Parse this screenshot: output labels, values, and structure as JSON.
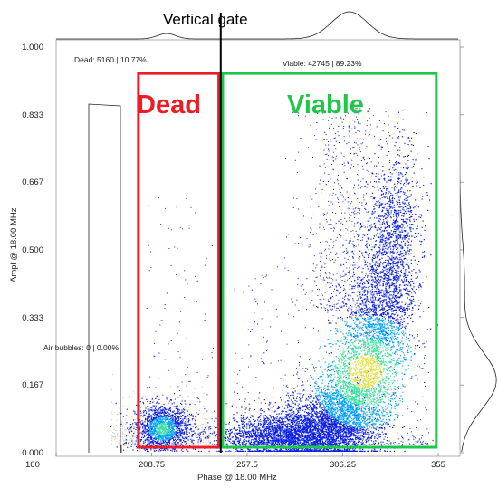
{
  "chart_data": {
    "type": "scatter",
    "title": "Vertical gate",
    "xlabel": "Phase @ 18.00 MHz",
    "ylabel": "Ampl @ 18.00 MHz",
    "xlim": [
      160,
      365
    ],
    "ylim": [
      0,
      1.0
    ],
    "x_ticks": [
      "160",
      "208.75",
      "257.5",
      "306.25",
      "355"
    ],
    "x_tick_values": [
      160,
      208.75,
      257.5,
      306.25,
      355
    ],
    "y_ticks": [
      "0.000",
      "0.167",
      "0.333",
      "0.500",
      "0.667",
      "0.833",
      "1.000"
    ],
    "y_tick_values": [
      0,
      0.167,
      0.333,
      0.5,
      0.667,
      0.833,
      1.0
    ],
    "vertical_gate_x": 244,
    "gates": [
      {
        "name": "Dead",
        "stat": "Dead: 5160 | 10.77%",
        "count": 5160,
        "percent": 10.77,
        "x_range": [
          202,
          243
        ],
        "y_range": [
          0.0,
          0.935
        ],
        "color": "#ee1c25"
      },
      {
        "name": "Viable",
        "stat": "Viable: 42745 | 89.23%",
        "count": 42745,
        "percent": 89.23,
        "x_range": [
          245,
          354
        ],
        "y_range": [
          0.0,
          0.935
        ],
        "color": "#1ec74a"
      },
      {
        "name": "Air bubbles",
        "stat": "Air bubbles: 0 | 0.00%",
        "count": 0,
        "percent": 0.0
      }
    ],
    "clusters": [
      {
        "label": "Dead population",
        "center": [
          214,
          0.06
        ],
        "spread": [
          7,
          0.03
        ]
      },
      {
        "label": "Viable population",
        "center": [
          318,
          0.19
        ],
        "spread": [
          20,
          0.12
        ]
      }
    ],
    "colormap": [
      "#c8c8c8",
      "#0a1ee6",
      "#00a0ff",
      "#40e0a0",
      "#e0e040"
    ],
    "grid": false
  }
}
